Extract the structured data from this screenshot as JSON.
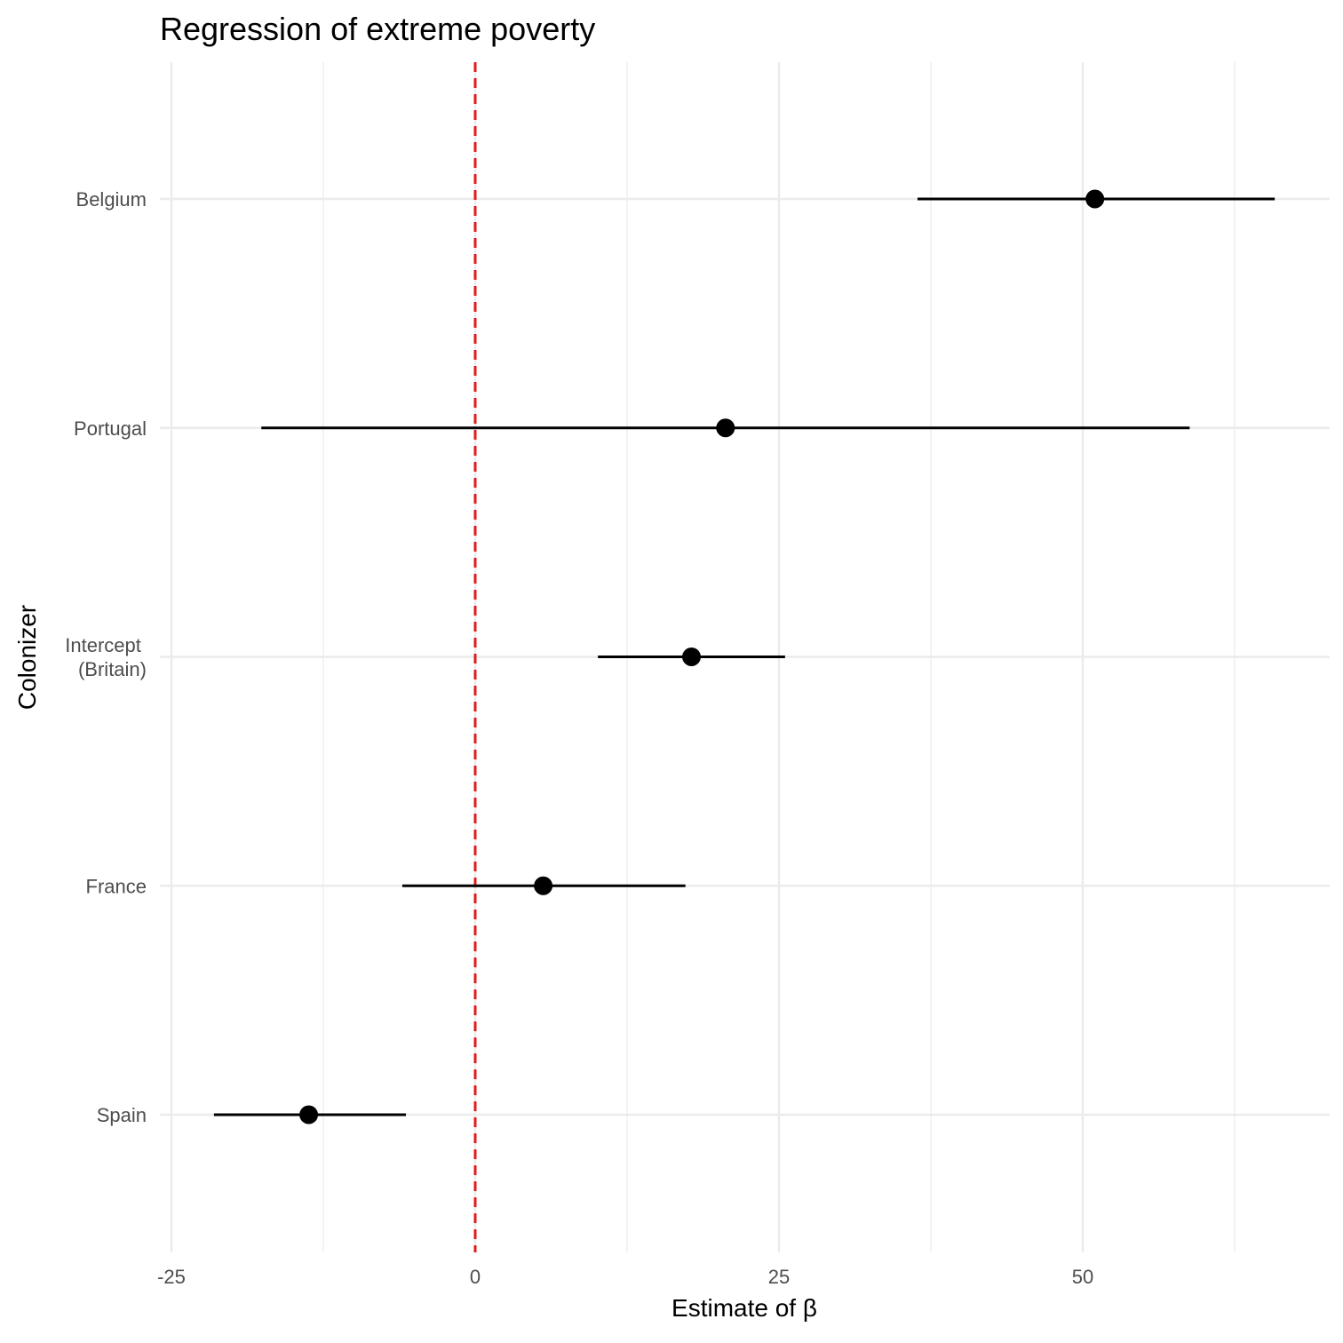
{
  "chart_data": {
    "type": "scatter",
    "title": "Regression of extreme poverty",
    "xlabel": "Estimate of β",
    "ylabel": "Colonizer",
    "xlim": [
      -25,
      70
    ],
    "x_ticks": [
      -25,
      0,
      25,
      50
    ],
    "x_minor_ticks": [
      -12.5,
      12.5,
      37.5,
      62.5
    ],
    "categories": [
      "Spain",
      "France",
      "Intercept \n(Britain)",
      "Portugal",
      "Belgium"
    ],
    "series": [
      {
        "points": [
          {
            "category": "Spain",
            "estimate": -13.7,
            "lower": -21.5,
            "upper": -5.7
          },
          {
            "category": "France",
            "estimate": 5.6,
            "lower": -6.0,
            "upper": 17.3
          },
          {
            "category": "Intercept \n(Britain)",
            "estimate": 17.8,
            "lower": 10.1,
            "upper": 25.5
          },
          {
            "category": "Portugal",
            "estimate": 20.6,
            "lower": -17.6,
            "upper": 58.8
          },
          {
            "category": "Belgium",
            "estimate": 51.0,
            "lower": 36.4,
            "upper": 65.8
          }
        ]
      }
    ],
    "reference_line": {
      "x": 0,
      "color": "#e41a1c",
      "style": "dashed"
    },
    "grid": true,
    "colors": {
      "point": "#000000",
      "grid": "#ebebeb",
      "reference": "#e41a1c"
    }
  }
}
